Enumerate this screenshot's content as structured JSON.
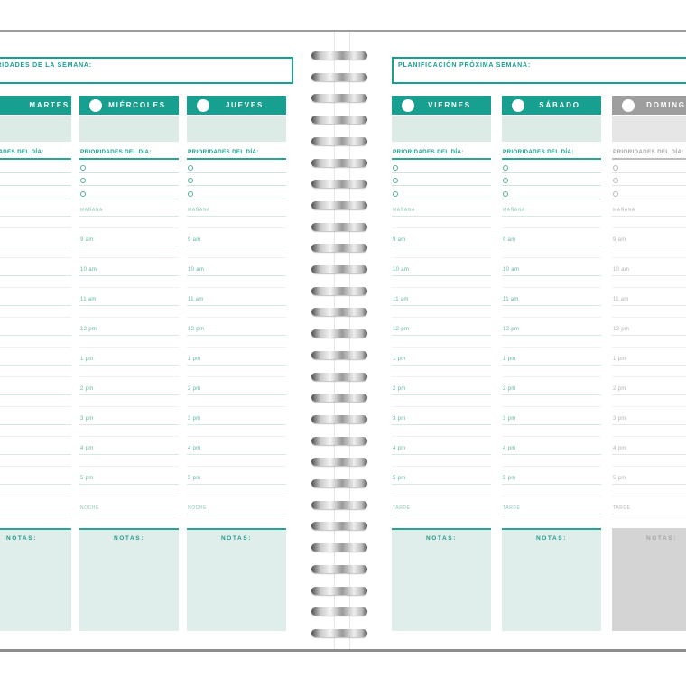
{
  "planner": {
    "left_page": {
      "week_box_label": "PRIORIDADES DE LA SEMANA:",
      "day_names": [
        "MARTES",
        "MIÉRCOLES",
        "JUEVES"
      ],
      "evening_label": "NOCHE"
    },
    "right_page": {
      "week_box_label": "PLANIFICACIÓN PRÓXIMA SEMANA:",
      "day_names": [
        "VIERNES",
        "SÁBADO",
        "DOMINGO"
      ],
      "evening_label": "TARDE"
    },
    "priorities_label": "PRIORIDADES DEL DÍA:",
    "morning_label": "MAÑANA",
    "times": [
      "9 am",
      "10 am",
      "11 am",
      "12 pm",
      "1 pm",
      "2 pm",
      "3 pm",
      "4 pm",
      "5 pm"
    ],
    "notas_label": "NOTAS:",
    "colors": {
      "teal": "#17a090",
      "teal_border": "#2aa392",
      "date_block_teal": "#dcebe6",
      "notes_bg_teal": "#dfeeea",
      "gray_header": "#9e9e9e",
      "date_block_gray": "#e6e6e6",
      "notes_bg_gray": "#d4d4d4",
      "spiral_metal": "#8f8f8f"
    }
  }
}
